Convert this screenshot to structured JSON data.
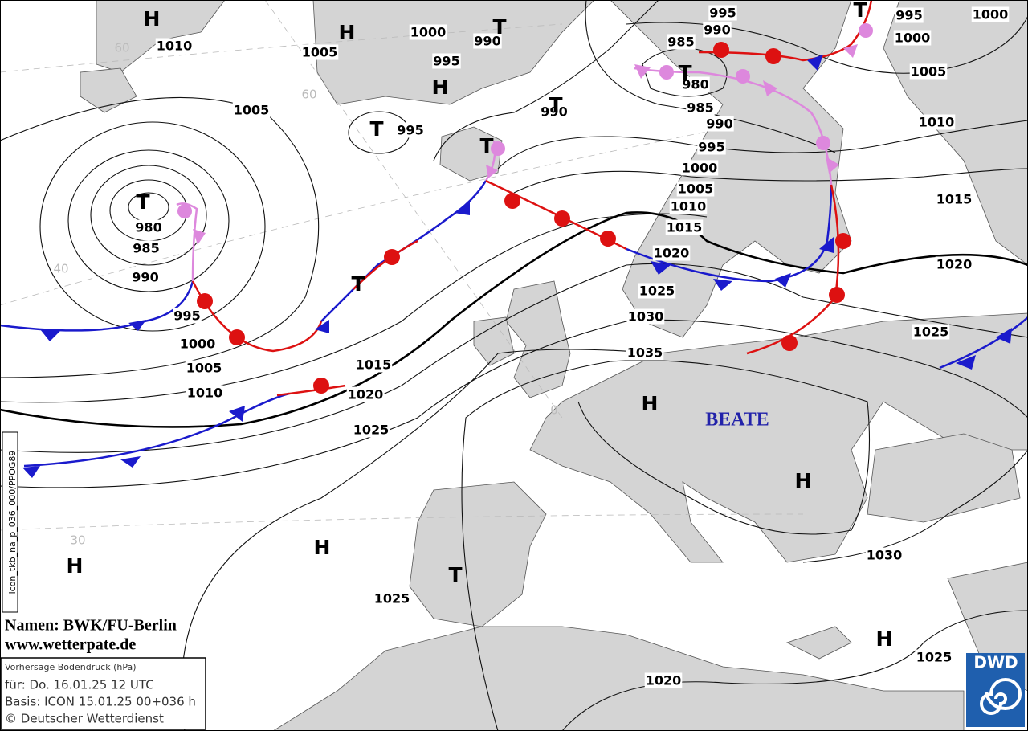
{
  "map": {
    "isobar_labels": [
      1010,
      1005,
      1000,
      990,
      995,
      1005,
      995,
      990,
      995,
      990,
      985,
      980,
      985,
      990,
      995,
      1000,
      1005,
      1010,
      1015,
      1020,
      1025,
      1030,
      1035,
      995,
      1000,
      1005,
      1010,
      1015,
      1020,
      1025,
      1000,
      980,
      985,
      990,
      995,
      1000,
      1005,
      1010,
      1015,
      1020,
      1025,
      1025,
      1020,
      1025,
      1030
    ],
    "pressure_centers": [
      "H",
      "H",
      "H",
      "T",
      "T",
      "T",
      "T",
      "T",
      "T",
      "T",
      "T",
      "H",
      "H",
      "H",
      "H",
      "T",
      "H"
    ],
    "grid_labels": [
      "60",
      "60",
      "40",
      "30",
      "0"
    ],
    "system_name": "BEATE"
  },
  "credits": {
    "names": "Namen: BWK/FU-Berlin",
    "website": "www.wetterpate.de"
  },
  "info_box": {
    "lines": [
      "Vorhersage Bodendruck (hPa)",
      "für:  Do. 16.01.25  12 UTC",
      "Basis: ICON  15.01.25 00+036 h",
      "© Deutscher Wetterdienst"
    ]
  },
  "product_code": "icon_tkb_na_p_036_000/PPOG89",
  "logo": "DWD"
}
